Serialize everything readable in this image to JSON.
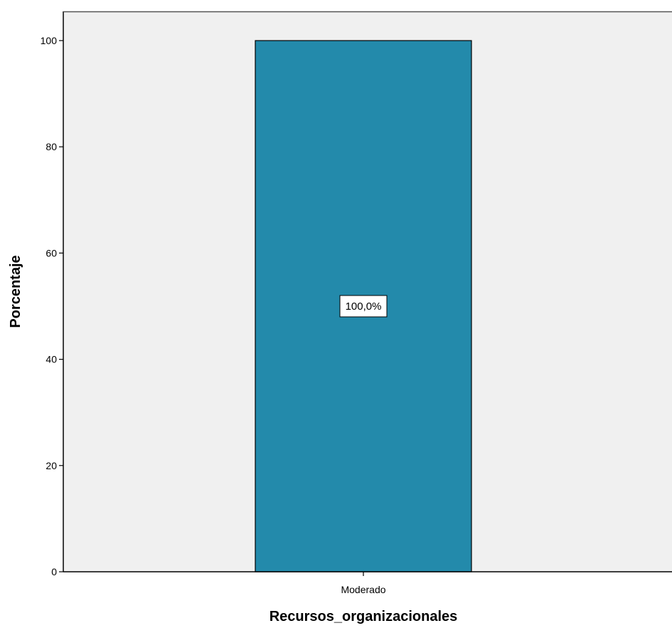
{
  "chart_data": {
    "type": "bar",
    "categories": [
      "Moderado"
    ],
    "values": [
      100
    ],
    "data_labels": [
      "100,0%"
    ],
    "title": "",
    "xlabel": "Recursos_organizacionales",
    "ylabel": "Porcentaje",
    "ylim": [
      0,
      100
    ],
    "yticks": [
      0,
      20,
      40,
      60,
      80,
      100
    ],
    "grid": false,
    "legend": "none",
    "colors": {
      "bar": "#238aab",
      "plot_background": "#f0f0f0",
      "axis": "#000000"
    }
  }
}
